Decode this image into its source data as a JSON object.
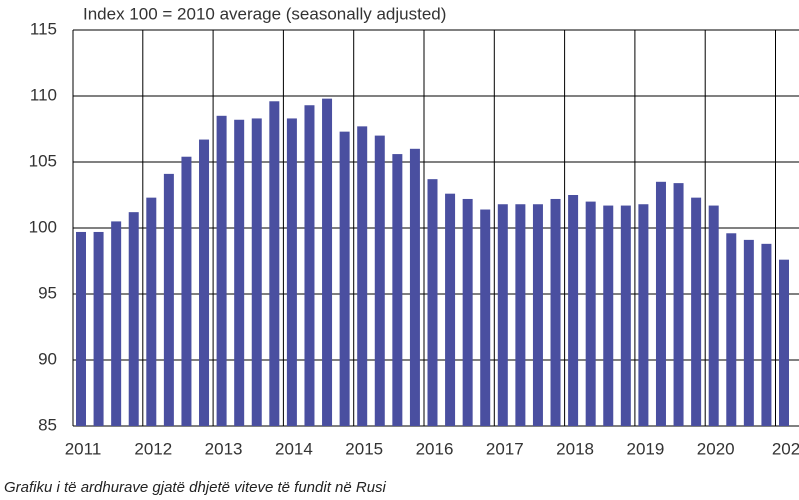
{
  "chart_data": {
    "type": "bar",
    "title": "Index 100 = 2010 average (seasonally adjusted)",
    "caption": "Grafiku i të ardhurave gjatë dhjetë viteve të fundit në Rusi",
    "categories": [
      "2011",
      null,
      null,
      null,
      "2012",
      null,
      null,
      null,
      "2013",
      null,
      null,
      null,
      "2014",
      null,
      null,
      null,
      "2015",
      null,
      null,
      null,
      "2016",
      null,
      null,
      null,
      "2017",
      null,
      null,
      null,
      "2018",
      null,
      null,
      null,
      "2019",
      null,
      null,
      null,
      "2020",
      null,
      null,
      null,
      "202"
    ],
    "values": [
      99.7,
      99.7,
      100.5,
      101.2,
      102.3,
      104.1,
      105.4,
      106.7,
      108.5,
      108.2,
      108.3,
      109.6,
      108.3,
      109.3,
      109.8,
      107.3,
      107.7,
      107.0,
      105.6,
      106.0,
      103.7,
      102.6,
      102.2,
      101.4,
      101.8,
      101.8,
      101.8,
      102.2,
      102.5,
      102.0,
      101.7,
      101.7,
      101.8,
      103.5,
      103.4,
      102.3,
      101.7,
      99.6,
      99.1,
      98.8,
      97.6
    ],
    "color": "#4a4fa0",
    "ylim": [
      85,
      115
    ],
    "yticks": [
      85,
      90,
      95,
      100,
      105,
      110,
      115
    ],
    "grid": true
  }
}
